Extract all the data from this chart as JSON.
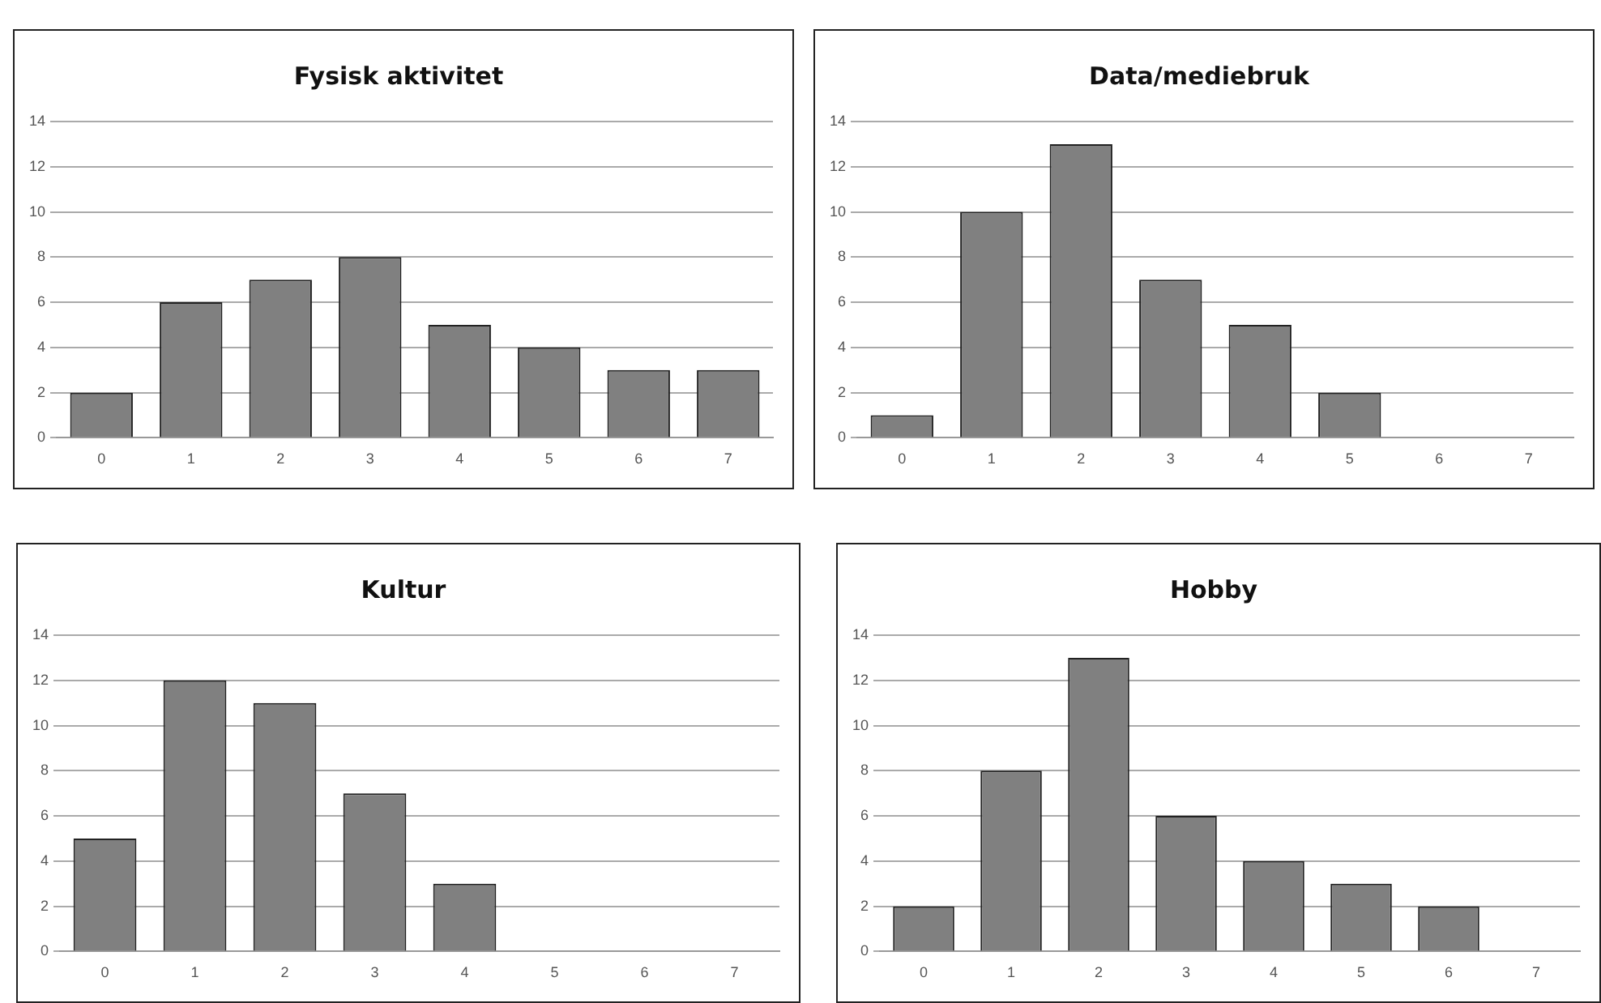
{
  "chart_data": [
    {
      "type": "bar",
      "title": "Fysisk aktivitet",
      "categories": [
        "0",
        "1",
        "2",
        "3",
        "4",
        "5",
        "6",
        "7"
      ],
      "values": [
        2,
        6,
        7,
        8,
        5,
        4,
        3,
        3
      ],
      "color": "#808080",
      "ylim": [
        0,
        14
      ],
      "yticks": [
        0,
        2,
        4,
        6,
        8,
        10,
        12,
        14
      ],
      "grid": "y",
      "legend": false
    },
    {
      "type": "bar",
      "title": "Data/mediebruk",
      "categories": [
        "0",
        "1",
        "2",
        "3",
        "4",
        "5",
        "6",
        "7"
      ],
      "values": [
        1,
        10,
        13,
        7,
        5,
        2,
        0,
        0
      ],
      "color": "#808080",
      "ylim": [
        0,
        14
      ],
      "yticks": [
        0,
        2,
        4,
        6,
        8,
        10,
        12,
        14
      ],
      "grid": "y",
      "legend": false
    },
    {
      "type": "bar",
      "title": "Kultur",
      "categories": [
        "0",
        "1",
        "2",
        "3",
        "4",
        "5",
        "6",
        "7"
      ],
      "values": [
        5,
        12,
        11,
        7,
        3,
        0,
        0,
        0
      ],
      "color": "#808080",
      "ylim": [
        0,
        14
      ],
      "yticks": [
        0,
        2,
        4,
        6,
        8,
        10,
        12,
        14
      ],
      "grid": "y",
      "legend": false
    },
    {
      "type": "bar",
      "title": "Hobby",
      "categories": [
        "0",
        "1",
        "2",
        "3",
        "4",
        "5",
        "6",
        "7"
      ],
      "values": [
        2,
        8,
        13,
        6,
        4,
        3,
        2,
        0
      ],
      "color": "#808080",
      "ylim": [
        0,
        14
      ],
      "yticks": [
        0,
        2,
        4,
        6,
        8,
        10,
        12,
        14
      ],
      "grid": "y",
      "legend": false
    }
  ]
}
